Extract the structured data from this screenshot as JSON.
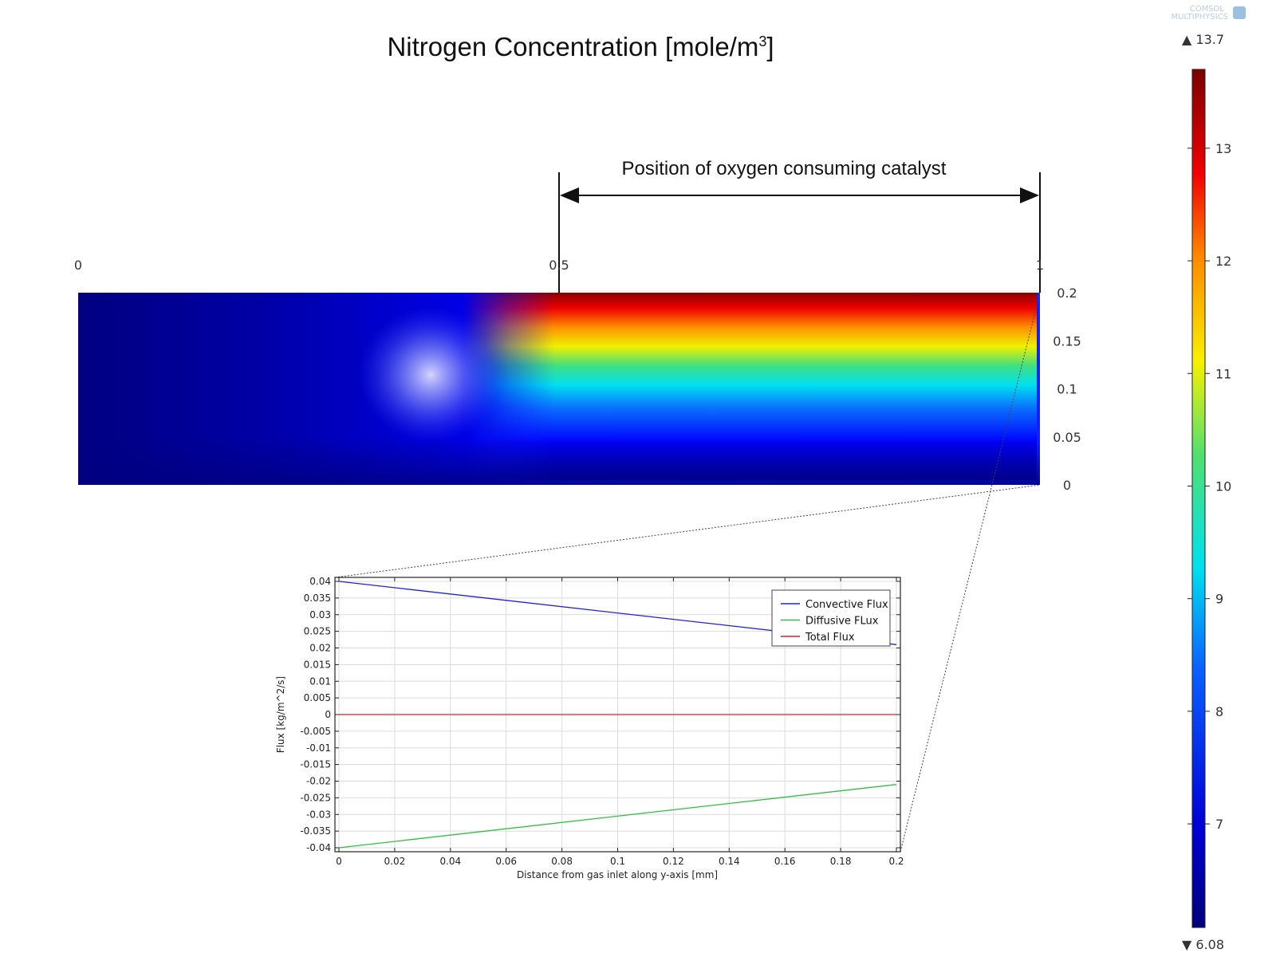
{
  "title": {
    "main": "Nitrogen Concentration [mole/m",
    "sup": "3",
    "close": "]"
  },
  "logo": {
    "line1": "COMSOL",
    "line2": "MULTIPHYSICS"
  },
  "annotation": {
    "label": "Position of oxygen consuming catalyst"
  },
  "colors": {
    "convective": "#2020e0",
    "diffusive": "#30c040",
    "total": "#e02020",
    "grid": "#dcdcdc"
  },
  "chart_data": [
    {
      "type": "heatmap",
      "title": "Nitrogen Concentration [mole/m^3]",
      "x_ticks": [
        "0",
        "0.5",
        "1"
      ],
      "y_ticks": [
        "0.2",
        "0.15",
        "0.1",
        "0.05",
        "0"
      ],
      "xlim": [
        0,
        1
      ],
      "ylim": [
        0,
        0.2
      ],
      "colorbar": {
        "min_label": "▼ 6.08",
        "max_label": "▲ 13.7",
        "min": 6.08,
        "max": 13.7,
        "ticks": [
          "13",
          "12",
          "11",
          "10",
          "9",
          "8",
          "7"
        ],
        "tick_values": [
          13,
          12,
          11,
          10,
          9,
          8,
          7
        ]
      }
    },
    {
      "type": "line",
      "xlabel": "Distance from gas inlet along y-axis [mm]",
      "ylabel": "Flux [kg/m^2/s]",
      "xlim": [
        0,
        0.2
      ],
      "ylim": [
        -0.04,
        0.04
      ],
      "x_ticks": [
        "0",
        "0.02",
        "0.04",
        "0.06",
        "0.08",
        "0.1",
        "0.12",
        "0.14",
        "0.16",
        "0.18",
        "0.2"
      ],
      "y_ticks": [
        "0.04",
        "0.035",
        "0.03",
        "0.025",
        "0.02",
        "0.015",
        "0.01",
        "0.005",
        "0",
        "-0.005",
        "-0.01",
        "-0.015",
        "-0.02",
        "-0.025",
        "-0.03",
        "-0.035",
        "-0.04"
      ],
      "legend_position": "top-right",
      "series": [
        {
          "name": "Convective Flux",
          "x": [
            0,
            0.2
          ],
          "y": [
            0.04,
            0.021
          ]
        },
        {
          "name": "Diffusive FLux",
          "x": [
            0,
            0.2
          ],
          "y": [
            -0.04,
            -0.021
          ]
        },
        {
          "name": "Total Flux",
          "x": [
            0,
            0.2
          ],
          "y": [
            0,
            0
          ]
        }
      ]
    }
  ]
}
